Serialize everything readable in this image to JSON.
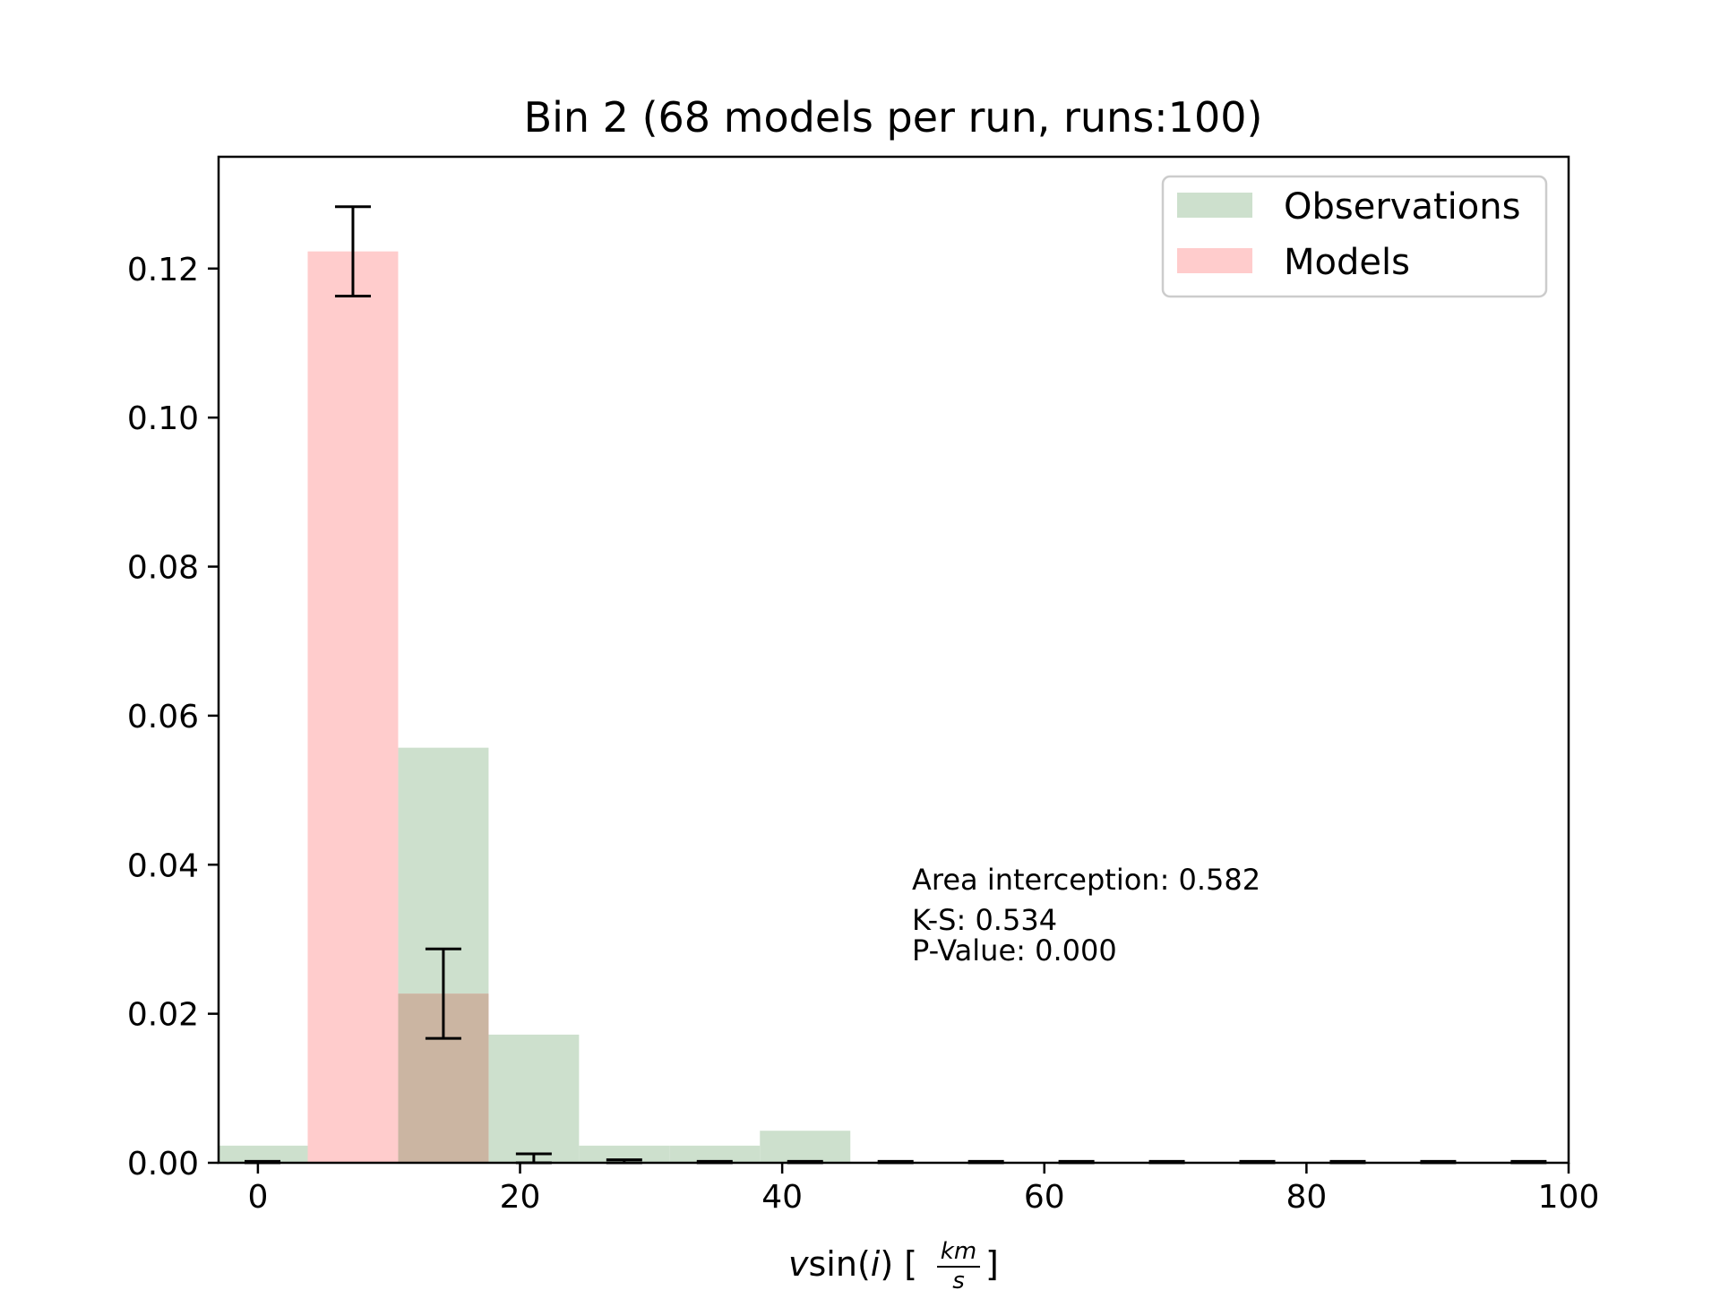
{
  "chart_data": {
    "type": "bar",
    "title": "Bin 2 (68 models per run, runs:100)",
    "xlabel": "vsin(i)  [km/s]",
    "ylabel": "",
    "xlim": [
      -3,
      100
    ],
    "ylim": [
      0,
      0.135
    ],
    "xticks": [
      0,
      20,
      40,
      60,
      80,
      100
    ],
    "yticks": [
      0.0,
      0.02,
      0.04,
      0.06,
      0.08,
      0.1,
      0.12
    ],
    "bin_edges": [
      -3.1,
      3.8,
      10.7,
      17.6,
      24.5,
      31.4,
      38.3,
      45.2,
      52.1,
      59.0,
      65.9,
      72.8,
      79.7,
      86.6,
      93.5,
      100.4
    ],
    "grid": false,
    "legend_position": "upper right",
    "series": [
      {
        "name": "Observations",
        "color": "#cde0cd",
        "values": [
          0.0023,
          0,
          0.0557,
          0.0172,
          0.0023,
          0.0023,
          0.0043,
          0,
          0,
          0,
          0,
          0,
          0,
          0,
          0
        ]
      },
      {
        "name": "Models",
        "color": "#ffcccc",
        "values": [
          0,
          0.1223,
          0.0227,
          0,
          0,
          0,
          0,
          0,
          0,
          0,
          0,
          0,
          0,
          0,
          0
        ],
        "errors": [
          0.0002,
          0.006,
          0.006,
          0.0012,
          0.0004,
          0.0002,
          0.0002,
          0.0002,
          0.0002,
          0.0002,
          0.0002,
          0.0002,
          0.0002,
          0.0002,
          0.0002
        ]
      }
    ],
    "overlap_color": "#cbb5a2",
    "annotations": [
      "Area interception: 0.582",
      "K-S: 0.534",
      "P-Value: 0.000"
    ]
  }
}
